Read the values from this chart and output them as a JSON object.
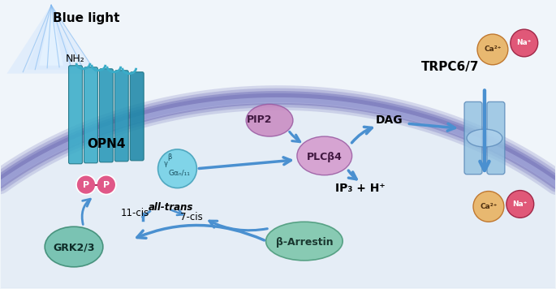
{
  "bg_color": "#f0f5fa",
  "membrane_color": "#8080c0",
  "cell_fill": "#e8f0f8",
  "light_blue": "#5bafd6",
  "dark_teal": "#1a7a8a",
  "teal_medium": "#3aacb8",
  "teal_light": "#7acde0",
  "pink_circle": "#e05888",
  "arrow_blue": "#3a80c0",
  "arrow_blue2": "#4a90d0",
  "blue_light_label": "Blue light",
  "labels": {
    "NH2": "NH₂",
    "OPN4": "OPN4",
    "Galpha": "Gαₙ/₁₁",
    "PIP2": "PIP2",
    "PLCb4": "PLCβ4",
    "DAG": "DAG",
    "IP3": "IP₃ + H⁺",
    "TRPC67": "TRPC6/7",
    "Ca2plus": "Ca²⁺",
    "Naplus": "Na⁺",
    "betaArr": "β-Arrestin",
    "GRK": "GRK2/3",
    "cis11": "11-cis",
    "alltrans": "all-trans",
    "cis7": "7-cis",
    "beta_greek": "β",
    "gamma_greek": "γ",
    "P": "P"
  },
  "figsize": [
    6.85,
    3.56
  ],
  "dpi": 100
}
